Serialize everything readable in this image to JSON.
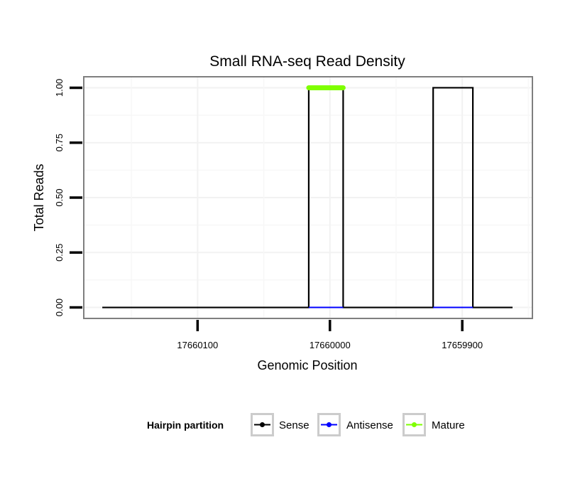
{
  "chart_data": {
    "type": "line",
    "title": "Small RNA-seq Read Density",
    "xlabel": "Genomic Position",
    "ylabel": "Total Reads",
    "x_reversed": true,
    "xlim": [
      17660186,
      17659847
    ],
    "ylim": [
      -0.05,
      1.05
    ],
    "x_ticks": [
      17660100,
      17660000,
      17659900
    ],
    "x_tick_labels": [
      "17660100",
      "17660000",
      "17659900"
    ],
    "y_ticks": [
      0,
      0.25,
      0.5,
      0.75,
      1.0
    ],
    "y_tick_labels": [
      "0.00",
      "0.25",
      "0.50",
      "0.75",
      "1.00"
    ],
    "grid": true,
    "legend": {
      "title": "Hairpin partition",
      "position": "bottom",
      "entries": [
        "Sense",
        "Antisense",
        "Mature"
      ]
    },
    "series": [
      {
        "name": "Sense",
        "color": "#000000",
        "x": [
          17660172,
          17660016,
          17660016,
          17659990,
          17659990,
          17659922,
          17659922,
          17659892,
          17659892,
          17659862
        ],
        "y": [
          0,
          0,
          1,
          1,
          0,
          0,
          1,
          1,
          0,
          0
        ]
      },
      {
        "name": "Antisense",
        "color": "#0000ff",
        "segments": [
          {
            "x": [
              17660016,
              17659990
            ],
            "y": [
              0,
              0
            ]
          },
          {
            "x": [
              17659922,
              17659892
            ],
            "y": [
              0,
              0
            ]
          }
        ]
      },
      {
        "name": "Mature",
        "color": "#7fff00",
        "segments": [
          {
            "x": [
              17660016,
              17659990
            ],
            "y": [
              1,
              1
            ]
          }
        ]
      }
    ]
  }
}
